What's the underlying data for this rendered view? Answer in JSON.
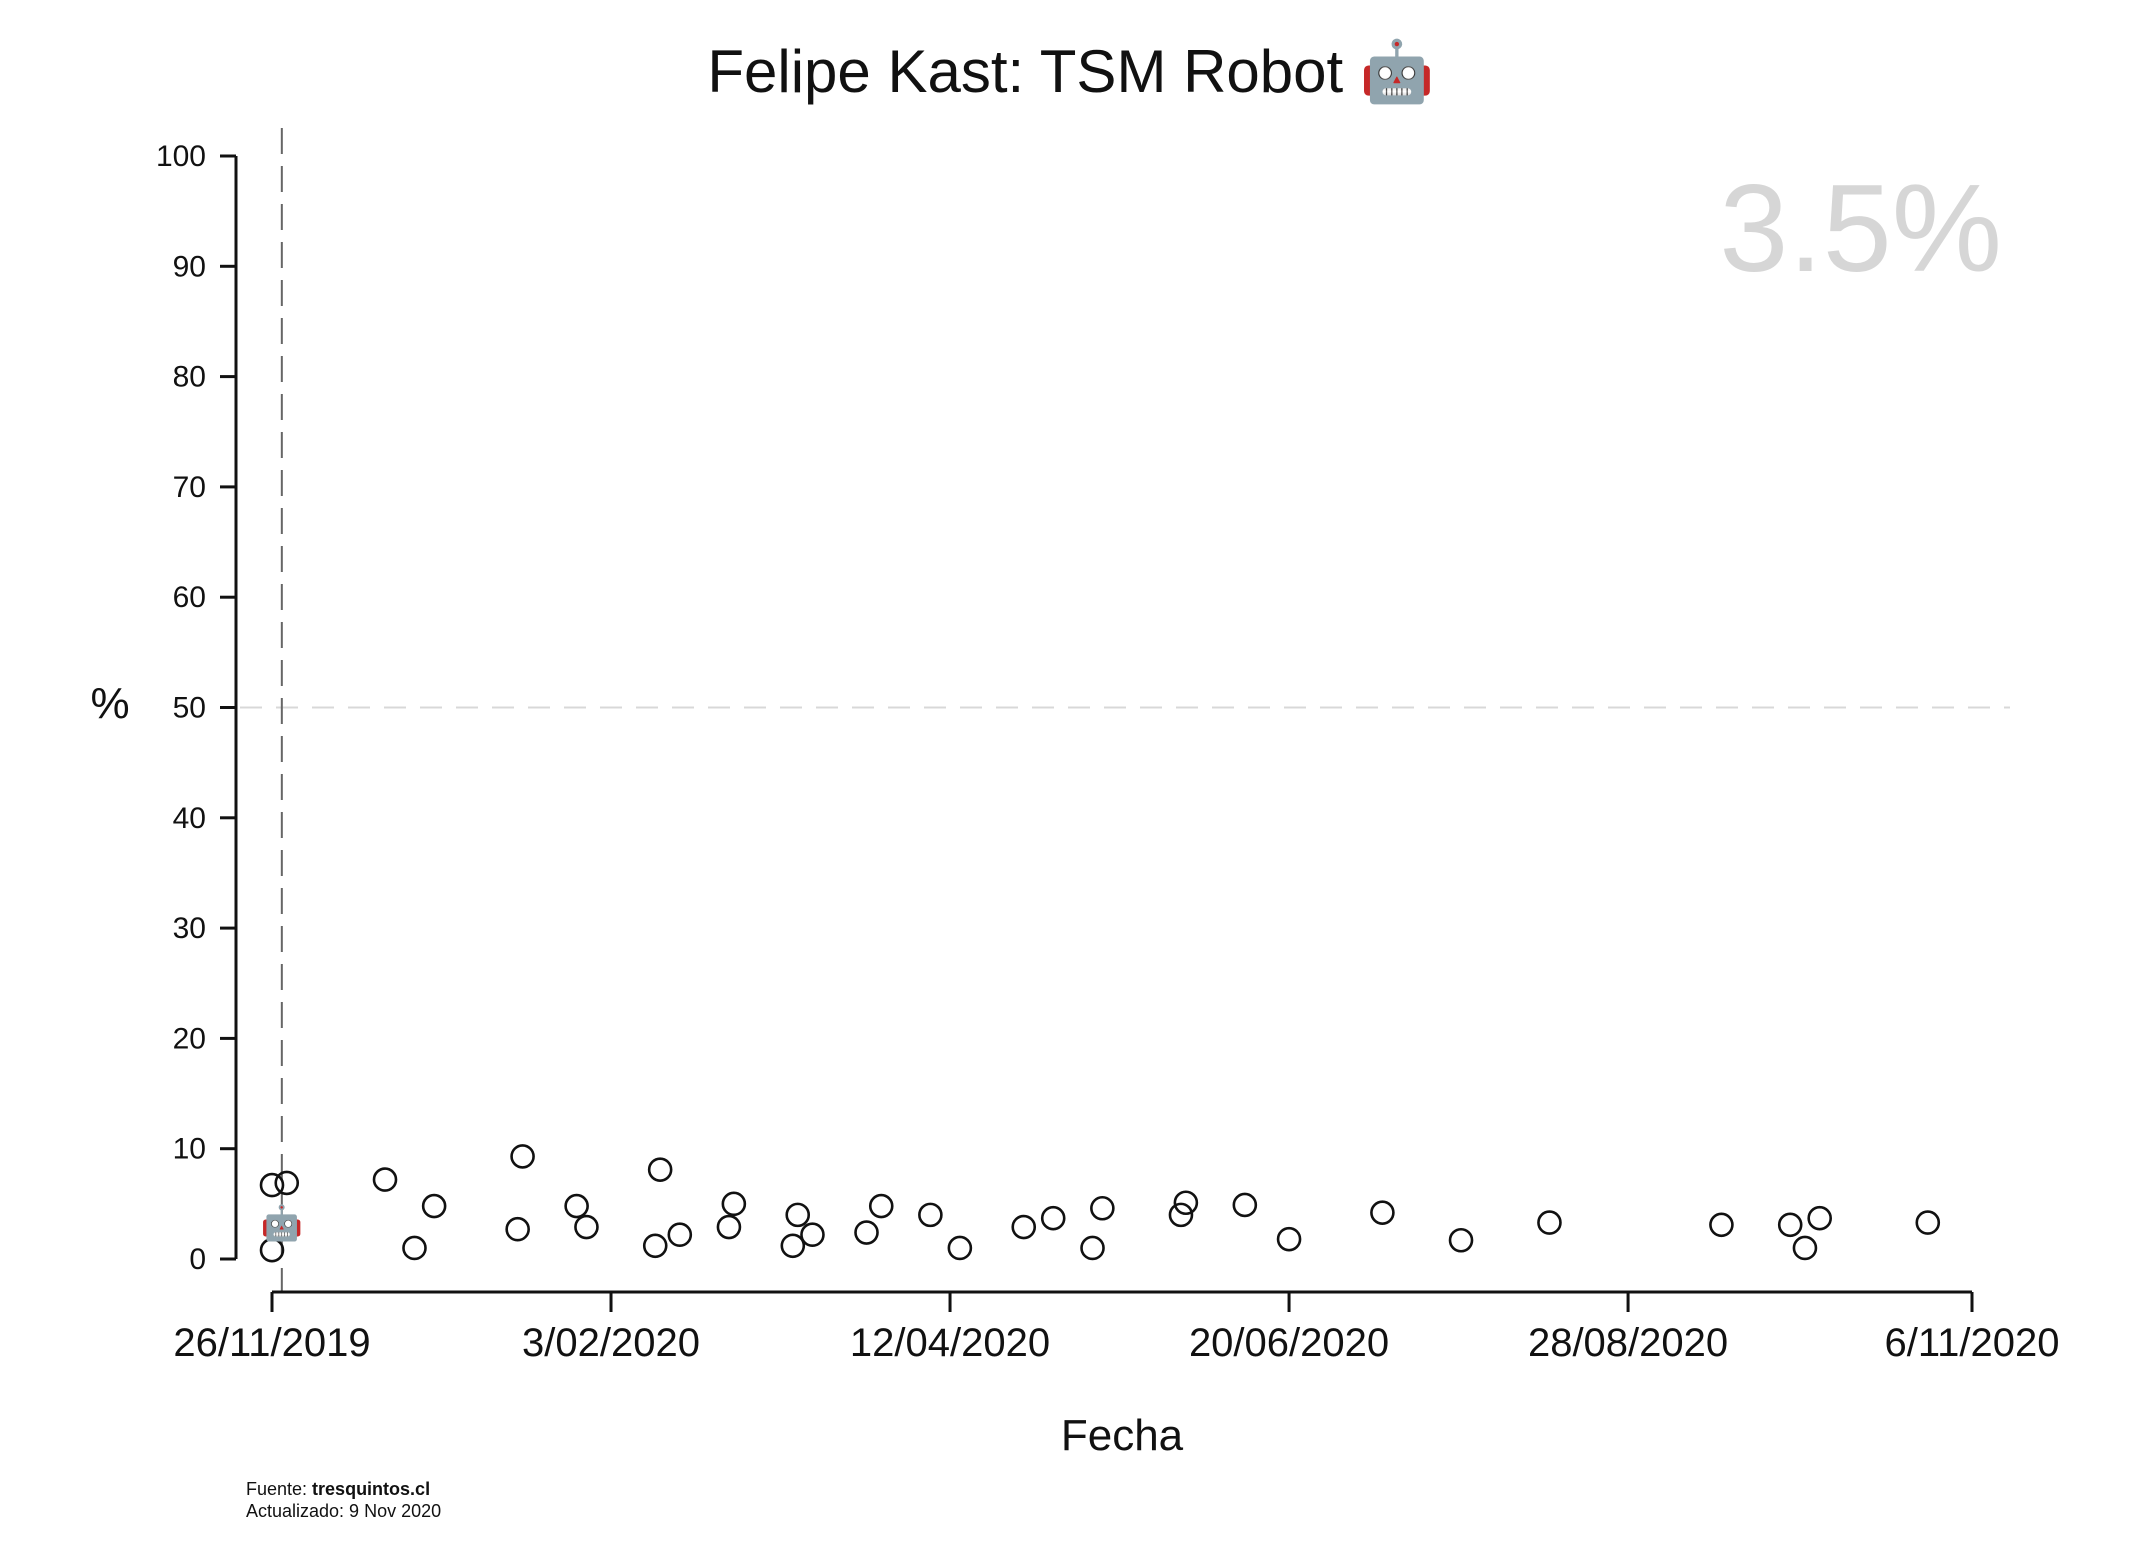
{
  "chart_data": {
    "type": "scatter",
    "title": "Felipe Kast: TSM Robot",
    "title_icon": "robot-icon",
    "xlabel": "Fecha",
    "ylabel": "%",
    "ylim": [
      0,
      100
    ],
    "yticks": [
      0,
      10,
      20,
      30,
      40,
      50,
      60,
      70,
      80,
      90,
      100
    ],
    "xlim": [
      "2019-11-26",
      "2020-11-06"
    ],
    "xticks": [
      {
        "date": "2019-11-26",
        "label": "26/11/2019"
      },
      {
        "date": "2020-02-03",
        "label": "3/02/2020"
      },
      {
        "date": "2020-04-12",
        "label": "12/04/2020"
      },
      {
        "date": "2020-06-20",
        "label": "20/06/2020"
      },
      {
        "date": "2020-08-28",
        "label": "28/08/2020"
      },
      {
        "date": "2020-11-06",
        "label": "6/11/2020"
      }
    ],
    "reference_lines": {
      "horizontal_dashed_y": 50,
      "vertical_dashed_x": "2019-11-28"
    },
    "current_marker": {
      "x": "2019-11-28",
      "y": 3.5,
      "icon": "robot-icon"
    },
    "current_value_label": "3.5%",
    "points": [
      {
        "x": "2019-11-26",
        "y": 6.7
      },
      {
        "x": "2019-11-29",
        "y": 6.9
      },
      {
        "x": "2019-11-26",
        "y": 0.8
      },
      {
        "x": "2019-12-19",
        "y": 7.2
      },
      {
        "x": "2019-12-25",
        "y": 1.0
      },
      {
        "x": "2019-12-29",
        "y": 4.8
      },
      {
        "x": "2020-01-15",
        "y": 2.7
      },
      {
        "x": "2020-01-16",
        "y": 9.3
      },
      {
        "x": "2020-01-27",
        "y": 4.8
      },
      {
        "x": "2020-01-29",
        "y": 2.9
      },
      {
        "x": "2020-02-12",
        "y": 1.2
      },
      {
        "x": "2020-02-13",
        "y": 8.1
      },
      {
        "x": "2020-02-17",
        "y": 2.2
      },
      {
        "x": "2020-02-27",
        "y": 2.9
      },
      {
        "x": "2020-02-28",
        "y": 5.0
      },
      {
        "x": "2020-03-11",
        "y": 1.2
      },
      {
        "x": "2020-03-12",
        "y": 4.0
      },
      {
        "x": "2020-03-15",
        "y": 2.2
      },
      {
        "x": "2020-03-26",
        "y": 2.4
      },
      {
        "x": "2020-03-29",
        "y": 4.8
      },
      {
        "x": "2020-04-08",
        "y": 4.0
      },
      {
        "x": "2020-04-14",
        "y": 1.0
      },
      {
        "x": "2020-04-27",
        "y": 2.9
      },
      {
        "x": "2020-05-03",
        "y": 3.7
      },
      {
        "x": "2020-05-11",
        "y": 1.0
      },
      {
        "x": "2020-05-13",
        "y": 4.6
      },
      {
        "x": "2020-05-29",
        "y": 4.0
      },
      {
        "x": "2020-05-30",
        "y": 5.1
      },
      {
        "x": "2020-06-11",
        "y": 4.9
      },
      {
        "x": "2020-06-20",
        "y": 1.8
      },
      {
        "x": "2020-07-09",
        "y": 4.2
      },
      {
        "x": "2020-07-25",
        "y": 1.7
      },
      {
        "x": "2020-08-12",
        "y": 3.3
      },
      {
        "x": "2020-09-16",
        "y": 3.1
      },
      {
        "x": "2020-09-30",
        "y": 3.1
      },
      {
        "x": "2020-10-03",
        "y": 1.0
      },
      {
        "x": "2020-10-06",
        "y": 3.7
      },
      {
        "x": "2020-10-28",
        "y": 3.3
      }
    ]
  },
  "footer": {
    "source_prefix": "Fuente: ",
    "source_name": "tresquintos.cl",
    "updated": "Actualizado: 9 Nov 2020"
  }
}
